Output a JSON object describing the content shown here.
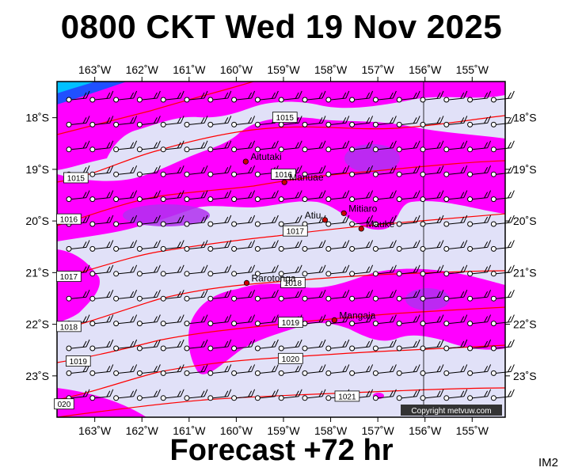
{
  "title": "0800 CKT Wed 19 Nov 2025",
  "footer": "Forecast +72 hr",
  "image_code": "IM2",
  "copyright": "Copyright metvuw.com",
  "axes": {
    "lon_labels": [
      "163˚W",
      "162˚W",
      "161˚W",
      "160˚W",
      "159˚W",
      "158˚W",
      "157˚W",
      "156˚W",
      "155˚W"
    ],
    "lon_values": [
      -163,
      -162,
      -161,
      -160,
      -159,
      -158,
      -157,
      -156,
      -155
    ],
    "lat_labels": [
      "18˚S",
      "19˚S",
      "20˚S",
      "21˚S",
      "22˚S",
      "23˚S"
    ],
    "lat_values": [
      -18,
      -19,
      -20,
      -21,
      -22,
      -23
    ],
    "lon_range": [
      -163.8,
      -154.3
    ],
    "lat_range": [
      -17.3,
      -23.8
    ]
  },
  "places": [
    {
      "name": "Aitutaki",
      "lon": -159.8,
      "lat": -18.85
    },
    {
      "name": "Manuae",
      "lon": -158.98,
      "lat": -19.25
    },
    {
      "name": "Atiu",
      "lon": -158.12,
      "lat": -19.98
    },
    {
      "name": "Mitiaro",
      "lon": -157.72,
      "lat": -19.85
    },
    {
      "name": "Mauke",
      "lon": -157.35,
      "lat": -20.15
    },
    {
      "name": "Rarotonga",
      "lon": -159.78,
      "lat": -21.2
    },
    {
      "name": "Mangaia",
      "lon": -157.92,
      "lat": -21.92
    }
  ],
  "isobars": [
    {
      "label": "1015",
      "lon": -158.97,
      "lat": -18.0
    },
    {
      "label": "1015",
      "lon": -163.4,
      "lat": -19.17
    },
    {
      "label": "1016",
      "lon": -159.0,
      "lat": -19.1
    },
    {
      "label": "1016",
      "lon": -163.55,
      "lat": -19.97
    },
    {
      "label": "1017",
      "lon": -158.75,
      "lat": -20.2
    },
    {
      "label": "1017",
      "lon": -163.55,
      "lat": -21.08
    },
    {
      "label": "1018",
      "lon": -158.8,
      "lat": -21.2
    },
    {
      "label": "1018",
      "lon": -163.55,
      "lat": -22.05
    },
    {
      "label": "1019",
      "lon": -158.85,
      "lat": -21.97
    },
    {
      "label": "1019",
      "lon": -163.35,
      "lat": -22.72
    },
    {
      "label": "1020",
      "lon": -158.85,
      "lat": -22.67
    },
    {
      "label": "020",
      "lon": -163.65,
      "lat": -23.55
    },
    {
      "label": "1021",
      "lon": -157.65,
      "lat": -23.4
    }
  ],
  "colors": {
    "frame": "#000000",
    "background_field": "#e1e1f8",
    "rain_light": "#ff00ff",
    "rain_medium": "#c020f0",
    "rain_heavy": "#8040e0",
    "isobar": "#ff0000",
    "town": "#cc0000"
  }
}
